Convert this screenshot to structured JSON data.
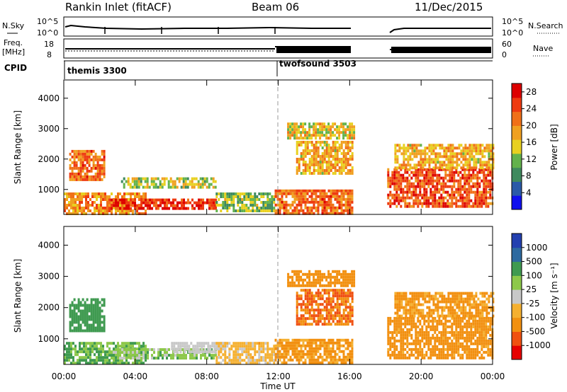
{
  "header": {
    "title": "Rankin Inlet (fitACF)",
    "beam": "Beam 06",
    "date": "11/Dec/2015"
  },
  "status_panels": {
    "nsky_label": "N.Sky",
    "nsky_ticks": [
      "10^5",
      "10^0"
    ],
    "nsearch_label": "N.Search",
    "nsearch_ticks": [
      "10^5",
      "10^0"
    ],
    "freq_label_1": "Freq.",
    "freq_label_2": "[MHz]",
    "freq_ticks": [
      "18",
      "8"
    ],
    "nave_label": "Nave",
    "nave_ticks": [
      "60",
      "0"
    ],
    "cpid_label": "CPID",
    "cpid_modes": [
      {
        "name": "themis 3300",
        "start_hour": 0
      },
      {
        "name": "twofsound 3503",
        "start_hour": 12
      }
    ]
  },
  "colors": {
    "power_scale": [
      "#1010ee",
      "#2a5aa8",
      "#3f8a5e",
      "#63b24c",
      "#e8d020",
      "#f0a020",
      "#f07018",
      "#ee3a10",
      "#dd0000"
    ],
    "velocity_scale": [
      "#e60000",
      "#f05010",
      "#f29010",
      "#f5b030",
      "#c8c8c8",
      "#8dc84a",
      "#3f9a50",
      "#2e6aa0",
      "#2340b0"
    ]
  },
  "chart_data": [
    {
      "type": "heatmap",
      "title": "Power",
      "xlabel": "",
      "ylabel": "Slant Range [km]",
      "x_ticks": [
        "00:00",
        "04:00",
        "08:00",
        "12:00",
        "16:00",
        "20:00",
        "00:00"
      ],
      "xlim_hours": [
        0,
        24
      ],
      "y_ticks": [
        "4000",
        "3000",
        "2000",
        "1000"
      ],
      "ylim_km": [
        180,
        4600
      ],
      "colorbar_label": "Power [dB]",
      "colorbar_ticks": [
        "28",
        "24",
        "20",
        "16",
        "12",
        "8",
        "4"
      ],
      "colorbar_range_db": [
        0,
        30
      ],
      "data_regions": [
        {
          "t0": 0.0,
          "t1": 4.6,
          "r0": 200,
          "r1": 900,
          "value": 20
        },
        {
          "t0": 0.3,
          "t1": 2.3,
          "r0": 1300,
          "r1": 2300,
          "value": 22
        },
        {
          "t0": 2.5,
          "t1": 8.5,
          "r0": 350,
          "r1": 700,
          "value": 26
        },
        {
          "t0": 3.2,
          "t1": 8.5,
          "r0": 1050,
          "r1": 1400,
          "value": 14
        },
        {
          "t0": 8.5,
          "t1": 11.8,
          "r0": 250,
          "r1": 900,
          "value": 12
        },
        {
          "t0": 11.8,
          "t1": 16.2,
          "r0": 200,
          "r1": 1000,
          "value": 22
        },
        {
          "t0": 13.0,
          "t1": 16.2,
          "r0": 1500,
          "r1": 2600,
          "value": 18
        },
        {
          "t0": 12.5,
          "t1": 16.2,
          "r0": 2700,
          "r1": 3200,
          "value": 16
        },
        {
          "t0": 18.1,
          "t1": 24.0,
          "r0": 400,
          "r1": 1700,
          "value": 24
        },
        {
          "t0": 18.5,
          "t1": 24.0,
          "r0": 1700,
          "r1": 2500,
          "value": 18
        }
      ]
    },
    {
      "type": "heatmap",
      "title": "Velocity",
      "xlabel": "Time UT",
      "ylabel": "Slant Range [km]",
      "x_ticks": [
        "00:00",
        "04:00",
        "08:00",
        "12:00",
        "16:00",
        "20:00",
        "00:00"
      ],
      "xlim_hours": [
        0,
        24
      ],
      "y_ticks": [
        "4000",
        "3000",
        "2000",
        "1000"
      ],
      "ylim_km": [
        180,
        4600
      ],
      "colorbar_label": "Velocity [m s⁻¹]",
      "colorbar_ticks": [
        "1000",
        "500",
        "100",
        "25",
        "-25",
        "-100",
        "-500",
        "-1000"
      ],
      "data_regions": [
        {
          "t0": 0.0,
          "t1": 4.6,
          "r0": 200,
          "r1": 900,
          "value": 100
        },
        {
          "t0": 0.3,
          "t1": 2.3,
          "r0": 1300,
          "r1": 2300,
          "value": 300
        },
        {
          "t0": 2.5,
          "t1": 8.5,
          "r0": 350,
          "r1": 700,
          "value": 60
        },
        {
          "t0": 6.0,
          "t1": 9.0,
          "r0": 600,
          "r1": 900,
          "value": 0
        },
        {
          "t0": 8.5,
          "t1": 11.8,
          "r0": 250,
          "r1": 900,
          "value": -50
        },
        {
          "t0": 11.8,
          "t1": 16.2,
          "r0": 200,
          "r1": 1000,
          "value": -150
        },
        {
          "t0": 13.0,
          "t1": 16.2,
          "r0": 1500,
          "r1": 2600,
          "value": -500
        },
        {
          "t0": 12.5,
          "t1": 16.2,
          "r0": 2700,
          "r1": 3200,
          "value": -300
        },
        {
          "t0": 18.1,
          "t1": 24.0,
          "r0": 400,
          "r1": 1700,
          "value": -200
        },
        {
          "t0": 18.5,
          "t1": 24.0,
          "r0": 1700,
          "r1": 2500,
          "value": -150
        }
      ]
    }
  ]
}
